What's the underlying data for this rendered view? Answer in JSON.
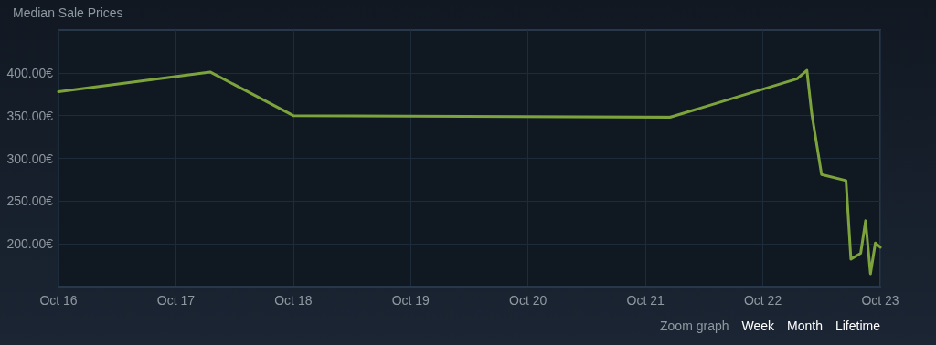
{
  "chart_data": {
    "type": "line",
    "title": "Median Sale Prices",
    "x": [
      "--10-16T00:00",
      "--10-17T07:00",
      "--10-18T00:00",
      "--10-21T05:00",
      "--10-22T07:00",
      "--10-22T09:00",
      "--10-22T10:00",
      "--10-22T12:00",
      "--10-22T17:00",
      "--10-22T18:00",
      "--10-22T20:00",
      "--10-22T21:00",
      "--10-22T22:00",
      "--10-22T23:00",
      "--10-23T00:00"
    ],
    "series": [
      {
        "color": "#7da43c",
        "values": [
          378,
          401,
          350,
          348,
          393,
          403,
          352,
          281,
          274,
          182,
          189,
          227,
          165,
          201,
          196
        ]
      }
    ],
    "xlim": [
      "--10-16T00:00",
      "--10-23T00:00"
    ],
    "xticks": [
      {
        "value": "--10-16",
        "label": "Oct 16"
      },
      {
        "value": "--10-17",
        "label": "Oct 17"
      },
      {
        "value": "--10-18",
        "label": "Oct 18"
      },
      {
        "value": "--10-19",
        "label": "Oct 19"
      },
      {
        "value": "--10-20",
        "label": "Oct 20"
      },
      {
        "value": "--10-21",
        "label": "Oct 21"
      },
      {
        "value": "--10-22",
        "label": "Oct 22"
      },
      {
        "value": "--10-23",
        "label": "Oct 23"
      }
    ],
    "ylim": [
      150,
      450
    ],
    "yticks": [
      {
        "value": 200,
        "label": "200.00€"
      },
      {
        "value": 250,
        "label": "250.00€"
      },
      {
        "value": 300,
        "label": "300.00€"
      },
      {
        "value": 350,
        "label": "350.00€"
      },
      {
        "value": 400,
        "label": "400.00€"
      }
    ],
    "grid": true,
    "marker": "none",
    "line_style": "solid",
    "annotations": [
      "Zoom graph",
      "Week",
      "Month",
      "Lifetime"
    ]
  }
}
